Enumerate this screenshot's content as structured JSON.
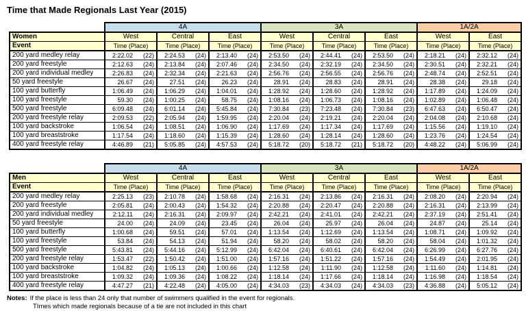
{
  "title": "Time that Made Regionals Last Year (2015)",
  "time_place_label": "Time (Place)",
  "divisions": [
    {
      "label": "4A",
      "cols": 3
    },
    {
      "label": "3A",
      "cols": 3
    },
    {
      "label": "1A/2A",
      "cols": 2
    }
  ],
  "region_headers": [
    "West",
    "Central",
    "East",
    "West",
    "Central",
    "East",
    "West",
    "East"
  ],
  "tables": [
    {
      "group_label": "Women",
      "event_label": "Event",
      "rows": [
        {
          "event": "200 yard medley relay",
          "cells": [
            [
              "2:22.02",
              "(22)"
            ],
            [
              "2:24.53",
              "(24)"
            ],
            [
              "2:13.40",
              "(24)"
            ],
            [
              "2:53.50",
              "(24)"
            ],
            [
              "2:44.41",
              "(24)"
            ],
            [
              "2:53.50",
              "(24)"
            ],
            [
              "2:18.21",
              "(24)"
            ],
            [
              "2:32.12",
              "(24)"
            ]
          ]
        },
        {
          "event": "200 yard freestyle",
          "cells": [
            [
              "2:12.63",
              "(24)"
            ],
            [
              "2:13.84",
              "(24)"
            ],
            [
              "2:07.46",
              "(24)"
            ],
            [
              "2:34.50",
              "(24)"
            ],
            [
              "2:32.19",
              "(24)"
            ],
            [
              "2:34.50",
              "(24)"
            ],
            [
              "2:30.51",
              "(24)"
            ],
            [
              "2:32.21",
              "(24)"
            ]
          ]
        },
        {
          "event": "200 yard individual medley",
          "cells": [
            [
              "2:26.83",
              "(24)"
            ],
            [
              "2:32.34",
              "(24)"
            ],
            [
              "2:21.63",
              "(24)"
            ],
            [
              "2:56.76",
              "(24)"
            ],
            [
              "2:56.55",
              "(24)"
            ],
            [
              "2:56.76",
              "(24)"
            ],
            [
              "2:48.74",
              "(24)"
            ],
            [
              "2:52.51",
              "(24)"
            ]
          ]
        },
        {
          "event": "50 yard freestyle",
          "cells": [
            [
              "26.67",
              "(24)"
            ],
            [
              "27.51",
              "(24)"
            ],
            [
              "26.23",
              "(24)"
            ],
            [
              "28.91",
              "(24)"
            ],
            [
              "28.83",
              "(24)"
            ],
            [
              "28.91",
              "(24)"
            ],
            [
              "28.38",
              "(24)"
            ],
            [
              "29.18",
              "(24)"
            ]
          ]
        },
        {
          "event": "100 yard butterfly",
          "cells": [
            [
              "1:06.49",
              "(24)"
            ],
            [
              "1:06.29",
              "(24)"
            ],
            [
              "1:04.01",
              "(24)"
            ],
            [
              "1:28.92",
              "(24)"
            ],
            [
              "1:28.60",
              "(24)"
            ],
            [
              "1:28.92",
              "(24)"
            ],
            [
              "1:17.89",
              "(24)"
            ],
            [
              "1:24.09",
              "(24)"
            ]
          ]
        },
        {
          "event": "100 yard freestyle",
          "cells": [
            [
              "59.30",
              "(24)"
            ],
            [
              "1:00.25",
              "(24)"
            ],
            [
              "58.75",
              "(24)"
            ],
            [
              "1:08.16",
              "(24)"
            ],
            [
              "1:06.73",
              "(24)"
            ],
            [
              "1:08.16",
              "(24)"
            ],
            [
              "1:02.89",
              "(24)"
            ],
            [
              "1:06.48",
              "(24)"
            ]
          ]
        },
        {
          "event": "500 yard freestyle",
          "cells": [
            [
              "6:09.48",
              "(24)"
            ],
            [
              "6:01.14",
              "(24)"
            ],
            [
              "5:45.84",
              "(24)"
            ],
            [
              "7:30.84",
              "(23)"
            ],
            [
              "7:23.48",
              "(24)"
            ],
            [
              "7:30.84",
              "(23)"
            ],
            [
              "6:47.63",
              "(24)"
            ],
            [
              "6:50.47",
              "(24)"
            ]
          ]
        },
        {
          "event": "200 yard freestyle relay",
          "cells": [
            [
              "2:09.53",
              "(22)"
            ],
            [
              "2:05.94",
              "(24)"
            ],
            [
              "1:59.95",
              "(24)"
            ],
            [
              "2:20.04",
              "(24)"
            ],
            [
              "2:19.21",
              "(24)"
            ],
            [
              "2:20.04",
              "(24)"
            ],
            [
              "2:04.08",
              "(24)"
            ],
            [
              "2:10.68",
              "(24)"
            ]
          ]
        },
        {
          "event": "100 yard backstroke",
          "cells": [
            [
              "1:06.54",
              "(24)"
            ],
            [
              "1:08.51",
              "(24)"
            ],
            [
              "1:06.90",
              "(24)"
            ],
            [
              "1:17.69",
              "(24)"
            ],
            [
              "1:17.34",
              "(24)"
            ],
            [
              "1:17.69",
              "(24)"
            ],
            [
              "1:15.56",
              "(24)"
            ],
            [
              "1:19.10",
              "(24)"
            ]
          ]
        },
        {
          "event": "100 yard breaststroke",
          "cells": [
            [
              "1:17.54",
              "(24)"
            ],
            [
              "1:18.60",
              "(24)"
            ],
            [
              "1:15.39",
              "(24)"
            ],
            [
              "1:28.60",
              "(24)"
            ],
            [
              "1:28.14",
              "(24)"
            ],
            [
              "1:28.60",
              "(24)"
            ],
            [
              "1:23.76",
              "(24)"
            ],
            [
              "1:24.54",
              "(24)"
            ]
          ]
        },
        {
          "event": "400 yard freestyle relay",
          "cells": [
            [
              "4:46.89",
              "(21)"
            ],
            [
              "5:05.85",
              "(24)"
            ],
            [
              "4:57.53",
              "(24)"
            ],
            [
              "5:18.72",
              "(20)"
            ],
            [
              "5:18.72",
              "(21)"
            ],
            [
              "5:18.72",
              "(20)"
            ],
            [
              "4:48.22",
              "(24)"
            ],
            [
              "5:06.99",
              "(24)"
            ]
          ]
        }
      ]
    },
    {
      "group_label": "Men",
      "event_label": "Event",
      "rows": [
        {
          "event": "200 yard medley relay",
          "cells": [
            [
              "2:25.13",
              "(23)"
            ],
            [
              "2:10.78",
              "(24)"
            ],
            [
              "1:58.68",
              "(24)"
            ],
            [
              "2:16.31",
              "(24)"
            ],
            [
              "2:13.86",
              "(24)"
            ],
            [
              "2:16.31",
              "(24)"
            ],
            [
              "2:08.20",
              "(24)"
            ],
            [
              "2:20.94",
              "(24)"
            ]
          ]
        },
        {
          "event": "200 yard freestyle",
          "cells": [
            [
              "2:05.81",
              "(24)"
            ],
            [
              "2:00.43",
              "(24)"
            ],
            [
              "1:54.32",
              "(24)"
            ],
            [
              "2:20.88",
              "(24)"
            ],
            [
              "2:20.47",
              "(24)"
            ],
            [
              "2:20.88",
              "(24)"
            ],
            [
              "2:16.31",
              "(24)"
            ],
            [
              "2:13.99",
              "(24)"
            ]
          ]
        },
        {
          "event": "200 yard individual medley",
          "cells": [
            [
              "2:12.11",
              "(24)"
            ],
            [
              "2:16.31",
              "(24)"
            ],
            [
              "2:09.97",
              "(24)"
            ],
            [
              "2:42.21",
              "(24)"
            ],
            [
              "2:41.01",
              "(24)"
            ],
            [
              "2:42.21",
              "(24)"
            ],
            [
              "2:37.19",
              "(24)"
            ],
            [
              "2:51.41",
              "(24)"
            ]
          ]
        },
        {
          "event": "50 yard freestyle",
          "cells": [
            [
              "24.00",
              "(24)"
            ],
            [
              "24.09",
              "(24)"
            ],
            [
              "23.45",
              "(24)"
            ],
            [
              "26.04",
              "(24)"
            ],
            [
              "25.97",
              "(24)"
            ],
            [
              "26.04",
              "(24)"
            ],
            [
              "24.87",
              "(24)"
            ],
            [
              "25.14",
              "(24)"
            ]
          ]
        },
        {
          "event": "100 yard butterfly",
          "cells": [
            [
              "1:00.68",
              "(24)"
            ],
            [
              "59.51",
              "(24)"
            ],
            [
              "57.01",
              "(24)"
            ],
            [
              "1:13.54",
              "(24)"
            ],
            [
              "1:12.69",
              "(24)"
            ],
            [
              "1:13.54",
              "(24)"
            ],
            [
              "1:08.71",
              "(24)"
            ],
            [
              "1:09.92",
              "(24)"
            ]
          ]
        },
        {
          "event": "100 yard freestyle",
          "cells": [
            [
              "53.84",
              "(24)"
            ],
            [
              "54.13",
              "(24)"
            ],
            [
              "51.94",
              "(24)"
            ],
            [
              "58.20",
              "(24)"
            ],
            [
              "58.02",
              "(24)"
            ],
            [
              "58.20",
              "(24)"
            ],
            [
              "58.04",
              "(24)"
            ],
            [
              "1:01.32",
              "(24)"
            ]
          ]
        },
        {
          "event": "500 yard freestyle",
          "cells": [
            [
              "5:43.81",
              "(24)"
            ],
            [
              "5:44.16",
              "(24)"
            ],
            [
              "5:12.99",
              "(24)"
            ],
            [
              "6:42.04",
              "(24)"
            ],
            [
              "6:40.61",
              "(24)"
            ],
            [
              "6:42.04",
              "(24)"
            ],
            [
              "6:26.99",
              "(24)"
            ],
            [
              "6:27.76",
              "(24)"
            ]
          ]
        },
        {
          "event": "200 yard freestyle relay",
          "cells": [
            [
              "1:53.47",
              "(22)"
            ],
            [
              "1:50.42",
              "(24)"
            ],
            [
              "1:51.00",
              "(24)"
            ],
            [
              "1:57.16",
              "(24)"
            ],
            [
              "1:51.22",
              "(24)"
            ],
            [
              "1:57.16",
              "(24)"
            ],
            [
              "1:54.49",
              "(24)"
            ],
            [
              "2:01.95",
              "(24)"
            ]
          ]
        },
        {
          "event": "100 yard backstroke",
          "cells": [
            [
              "1:04.82",
              "(24)"
            ],
            [
              "1:05.13",
              "(24)"
            ],
            [
              "1:00.66",
              "(24)"
            ],
            [
              "1:12.58",
              "(24)"
            ],
            [
              "1:11.90",
              "(24)"
            ],
            [
              "1:12.58",
              "(24)"
            ],
            [
              "1:11.60",
              "(24)"
            ],
            [
              "1:14.81",
              "(24)"
            ]
          ]
        },
        {
          "event": "100 yard breaststroke",
          "cells": [
            [
              "1:09.32",
              "(24)"
            ],
            [
              "1:09.36",
              "(24)"
            ],
            [
              "1:08.22",
              "(24)"
            ],
            [
              "1:18.14",
              "(24)"
            ],
            [
              "1:17.66",
              "(24)"
            ],
            [
              "1:18.14",
              "(24)"
            ],
            [
              "1:16.98",
              "(24)"
            ],
            [
              "1:18.54",
              "(24)"
            ]
          ]
        },
        {
          "event": "400 yard freestyle relay",
          "cells": [
            [
              "4:47.27",
              "(21)"
            ],
            [
              "4:22.48",
              "(24)"
            ],
            [
              "4:05.00",
              "(24)"
            ],
            [
              "4:34.03",
              "(23)"
            ],
            [
              "4:34.03",
              "(24)"
            ],
            [
              "4:34.03",
              "(23)"
            ],
            [
              "4:36.88",
              "(24)"
            ],
            [
              "5:05.12",
              "(24)"
            ]
          ]
        }
      ]
    }
  ],
  "notes": {
    "label": "Notes:",
    "line1": "If the place is less than 24 only that number of swimmers qualified in the event for regionals.",
    "line2": "TImes which made regionals because of a tie are not included in this chart"
  },
  "colors": {
    "division_4a": "#C6DEEB",
    "division_3a": "#D8E4BC",
    "division_1a2a": "#FBCDA4",
    "header_yellow": "#FFFFCC",
    "border": "#000000"
  }
}
